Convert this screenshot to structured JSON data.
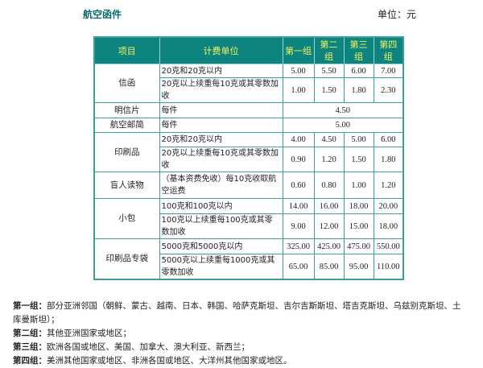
{
  "title": "航空函件",
  "unit": "单位：元",
  "table": {
    "headers": [
      "项目",
      "计费单位",
      "第一组",
      "第二组",
      "第三组",
      "第四组"
    ],
    "letter": {
      "item": "信函",
      "rows": [
        {
          "unit": "20克和20克以内",
          "v": [
            "5.00",
            "5.50",
            "6.00",
            "7.00"
          ]
        },
        {
          "unit": "20克以上续重每10克或其零数加收",
          "v": [
            "1.00",
            "1.50",
            "1.80",
            "2.30"
          ]
        }
      ]
    },
    "postcard": {
      "item": "明信片",
      "unit": "每件",
      "v": "4.50"
    },
    "aerogramme": {
      "item": "航空邮简",
      "unit": "每件",
      "v": "5.00"
    },
    "printed": {
      "item": "印刷品",
      "rows": [
        {
          "unit": "20克和20克以内",
          "v": [
            "4.00",
            "4.50",
            "5.00",
            "6.00"
          ]
        },
        {
          "unit": "20克以上续重每10克或其零数加收",
          "v": [
            "0.90",
            "1.20",
            "1.50",
            "1.80"
          ]
        }
      ]
    },
    "blind": {
      "item": "盲人读物",
      "unit": "（基本资费免收）每10克收取航空运费",
      "v": [
        "0.60",
        "0.80",
        "1.00",
        "1.20"
      ]
    },
    "packet": {
      "item": "小包",
      "rows": [
        {
          "unit": "100克和100克以内",
          "v": [
            "14.00",
            "16.00",
            "18.00",
            "20.00"
          ]
        },
        {
          "unit": "100克以上续重每100克或其零数加收",
          "v": [
            "9.00",
            "12.00",
            "15.00",
            "18.00"
          ]
        }
      ]
    },
    "mbag": {
      "item": "印刷品专袋",
      "rows": [
        {
          "unit": "5000克和5000克以内",
          "v": [
            "325.00",
            "425.00",
            "475.00",
            "550.00"
          ]
        },
        {
          "unit": "5000克以上续重每1000克或其零数加收",
          "v": [
            "65.00",
            "85.00",
            "95.00",
            "110.00"
          ]
        }
      ]
    }
  },
  "notes": [
    {
      "label": "第一组：",
      "text": "部分亚洲邻国（朝鲜、蒙古、越南、日本、韩国、哈萨克斯坦、吉尔吉斯斯坦、塔吉克斯坦、乌兹别克斯坦、土库曼斯坦）；"
    },
    {
      "label": "第二组：",
      "text": "其他亚洲国家或地区；"
    },
    {
      "label": "第三组：",
      "text": "欧洲各国或地区、美国、加拿大、澳大利亚、新西兰；"
    },
    {
      "label": "第四组：",
      "text": "美洲其他国家或地区、非洲各国或地区、大洋州其他国家或地区。"
    }
  ]
}
